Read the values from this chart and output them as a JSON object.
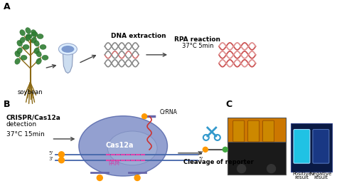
{
  "background_color": "#ffffff",
  "panel_A_label": "A",
  "panel_B_label": "B",
  "panel_C_label": "C",
  "label_soybean": "soybean",
  "label_dna_extraction": "DNA extraction",
  "label_rpa_reaction": "RPA reaction",
  "label_rpa_temp": "37°C 5min",
  "label_crispr": "CRISPR/Cas12a",
  "label_detection": "detection",
  "label_temp": "37°C 15min",
  "label_cas12a": "Cas12a",
  "label_crRNA": "CrRNA",
  "label_PAM": "PAM",
  "label_cleavage": "Cleavage of reporter",
  "label_positive": "Positive",
  "label_negative": "Negative",
  "label_result": "result",
  "dna_gray_color": "#888888",
  "dna_pink_color": "#d07070",
  "dna_red_color": "#cc5555",
  "soybean_green": "#2e7d32",
  "soybean_stem": "#8b6914",
  "cas12a_outer": "#8090c8",
  "cas12a_inner": "#a0b0d8",
  "dna_blue": "#4466aa",
  "crRNA_color": "#cc3333",
  "arrow_color": "#444444",
  "box_orange": "#cc7700",
  "box_dark": "#1a1a1a",
  "circle_orange": "#ff9900",
  "circle_green": "#44aa44",
  "scissors_color": "#3399cc"
}
